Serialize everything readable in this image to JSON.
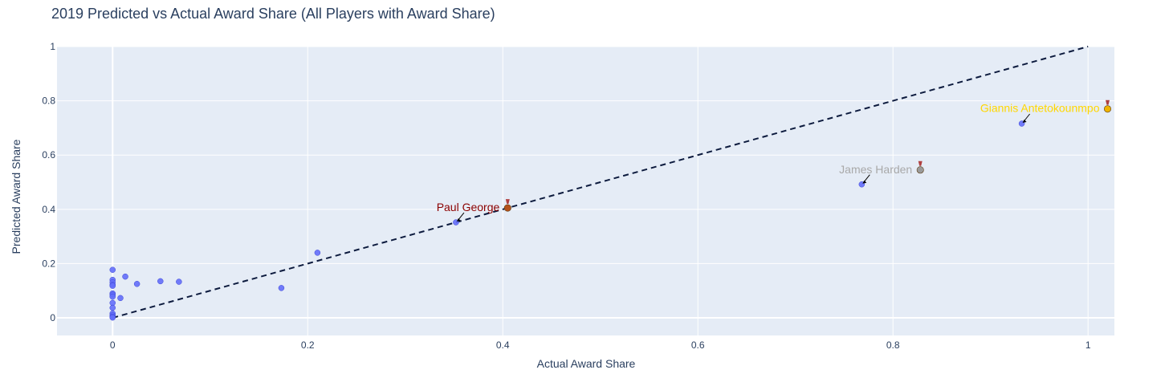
{
  "chart_data": {
    "type": "scatter",
    "title": "2019 Predicted vs Actual Award Share (All Players with Award Share)",
    "xlabel": "Actual Award Share",
    "ylabel": "Predicted Award Share",
    "xlim": [
      -0.057,
      1.027
    ],
    "ylim": [
      -0.065,
      1.0
    ],
    "xticks": [
      0,
      0.2,
      0.4,
      0.6,
      0.8,
      1
    ],
    "xtick_labels": [
      "0",
      "0.2",
      "0.4",
      "0.6",
      "0.8",
      "1"
    ],
    "yticks": [
      0,
      0.2,
      0.4,
      0.6,
      0.8,
      1
    ],
    "ytick_labels": [
      "0",
      "0.2",
      "0.4",
      "0.6",
      "0.8",
      "1"
    ],
    "grid": true,
    "colors": {
      "plot_bg": "#E5ECF6",
      "grid": "#ffffff",
      "points": "#636EFA",
      "reference_line": "#0d1b3e",
      "gold": "#FFD700",
      "silver": "#A9A9A9",
      "bronze": "#8B0000"
    },
    "reference_line": {
      "x": [
        0,
        1
      ],
      "y": [
        0,
        1
      ],
      "style": "dashed"
    },
    "points": [
      {
        "x": 0.932,
        "y": 0.716
      },
      {
        "x": 0.768,
        "y": 0.492
      },
      {
        "x": 0.352,
        "y": 0.352
      },
      {
        "x": 0.21,
        "y": 0.24
      },
      {
        "x": 0.173,
        "y": 0.11
      },
      {
        "x": 0.068,
        "y": 0.133
      },
      {
        "x": 0.049,
        "y": 0.135
      },
      {
        "x": 0.025,
        "y": 0.125
      },
      {
        "x": 0.013,
        "y": 0.152
      },
      {
        "x": 0.008,
        "y": 0.073
      },
      {
        "x": 0.0,
        "y": 0.177
      },
      {
        "x": 0.0,
        "y": 0.14
      },
      {
        "x": 0.0,
        "y": 0.131
      },
      {
        "x": 0.0,
        "y": 0.122
      },
      {
        "x": 0.0,
        "y": 0.118
      },
      {
        "x": 0.0,
        "y": 0.09
      },
      {
        "x": 0.0,
        "y": 0.085
      },
      {
        "x": 0.0,
        "y": 0.078
      },
      {
        "x": 0.0,
        "y": 0.055
      },
      {
        "x": 0.0,
        "y": 0.037
      },
      {
        "x": 0.0,
        "y": 0.016
      },
      {
        "x": 0.0,
        "y": 0.009
      },
      {
        "x": 0.0,
        "y": 0.004
      },
      {
        "x": 0.0,
        "y": 0.001
      }
    ],
    "annotations": [
      {
        "text": "Giannis Antetokounmpo",
        "medal": "gold",
        "medal_icon": "gold-medal-icon",
        "point": {
          "x": 0.932,
          "y": 0.716
        },
        "medal_at": {
          "x": 1.02,
          "y": 0.773
        }
      },
      {
        "text": "James Harden",
        "medal": "silver",
        "medal_icon": "silver-medal-icon",
        "point": {
          "x": 0.768,
          "y": 0.492
        },
        "medal_at": {
          "x": 0.828,
          "y": 0.548
        }
      },
      {
        "text": "Paul George",
        "medal": "bronze",
        "medal_icon": "bronze-medal-icon",
        "point": {
          "x": 0.352,
          "y": 0.352
        },
        "medal_at": {
          "x": 0.405,
          "y": 0.408
        }
      }
    ]
  }
}
